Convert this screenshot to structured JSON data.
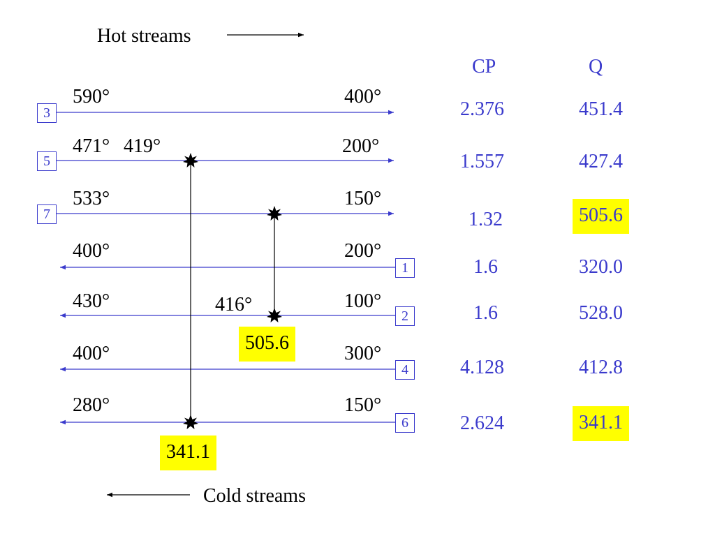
{
  "legend": {
    "hot_label": "Hot streams",
    "cold_label": "Cold streams"
  },
  "headers": {
    "cp": "CP",
    "q": "Q"
  },
  "streams": [
    {
      "id": "3",
      "left_temp": "590°",
      "left_temp2": "",
      "right_temp": "400°",
      "direction": "hot",
      "cp": "2.376",
      "q": "451.4",
      "q_highlight": false
    },
    {
      "id": "5",
      "left_temp": "471°",
      "left_temp2": "419°",
      "right_temp": "200°",
      "direction": "hot",
      "cp": "1.557",
      "q": "427.4",
      "q_highlight": false
    },
    {
      "id": "7",
      "left_temp": "533°",
      "left_temp2": "",
      "right_temp": "150°",
      "direction": "hot",
      "cp": "1.32",
      "q": "505.6",
      "q_highlight": true
    },
    {
      "id": "1",
      "left_temp": "400°",
      "left_temp2": "",
      "right_temp": "200°",
      "direction": "cold",
      "cp": "1.6",
      "q": "320.0",
      "q_highlight": false
    },
    {
      "id": "2",
      "left_temp": "430°",
      "left_temp2": "",
      "right_temp": "100°",
      "direction": "cold",
      "cp": "1.6",
      "q": "528.0",
      "q_highlight": false
    },
    {
      "id": "4",
      "left_temp": "400°",
      "left_temp2": "",
      "right_temp": "300°",
      "direction": "cold",
      "cp": "4.128",
      "q": "412.8",
      "q_highlight": false
    },
    {
      "id": "6",
      "left_temp": "280°",
      "left_temp2": "",
      "right_temp": "150°",
      "direction": "cold",
      "cp": "2.624",
      "q": "341.1",
      "q_highlight": true
    }
  ],
  "matches": [
    {
      "from_stream": "7",
      "to_stream": "2",
      "duty": "505.6",
      "intermediate_temp": "416°"
    },
    {
      "from_stream": "5",
      "to_stream": "6",
      "duty": "341.1",
      "intermediate_temp": ""
    }
  ],
  "colors": {
    "line": "#3a3acc",
    "highlight": "#ffff00",
    "text": "#000000"
  }
}
